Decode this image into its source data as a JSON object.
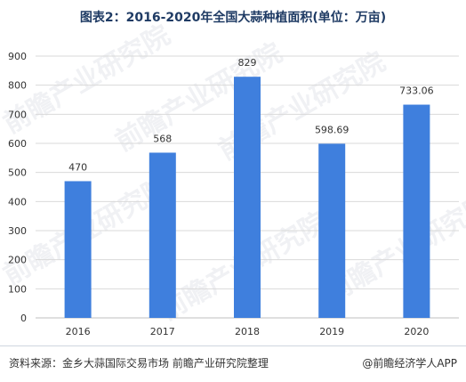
{
  "title": "图表2：2016-2020年全国大蒜种植面积(单位：万亩)",
  "watermark": "前瞻产业研究院",
  "footer": {
    "source": "资料来源：金乡大蒜国际交易市场 前瞻产业研究院整理",
    "brand": "@前瞻经济学人APP"
  },
  "colors": {
    "bar": "#3f7fdd",
    "grid": "#d9d9d9",
    "axis": "#bfbfbf",
    "title": "#1f3b64"
  },
  "chart_data": {
    "type": "bar",
    "title": "图表2：2016-2020年全国大蒜种植面积(单位：万亩)",
    "xlabel": "",
    "ylabel": "",
    "categories": [
      "2016",
      "2017",
      "2018",
      "2019",
      "2020"
    ],
    "values": [
      470,
      568,
      829,
      598.69,
      733.06
    ],
    "data_labels": [
      "470",
      "568",
      "829",
      "598.69",
      "733.06"
    ],
    "ylim": [
      0,
      900
    ],
    "yticks": [
      0,
      100,
      200,
      300,
      400,
      500,
      600,
      700,
      800,
      900
    ],
    "grid": true,
    "legend": "none"
  }
}
